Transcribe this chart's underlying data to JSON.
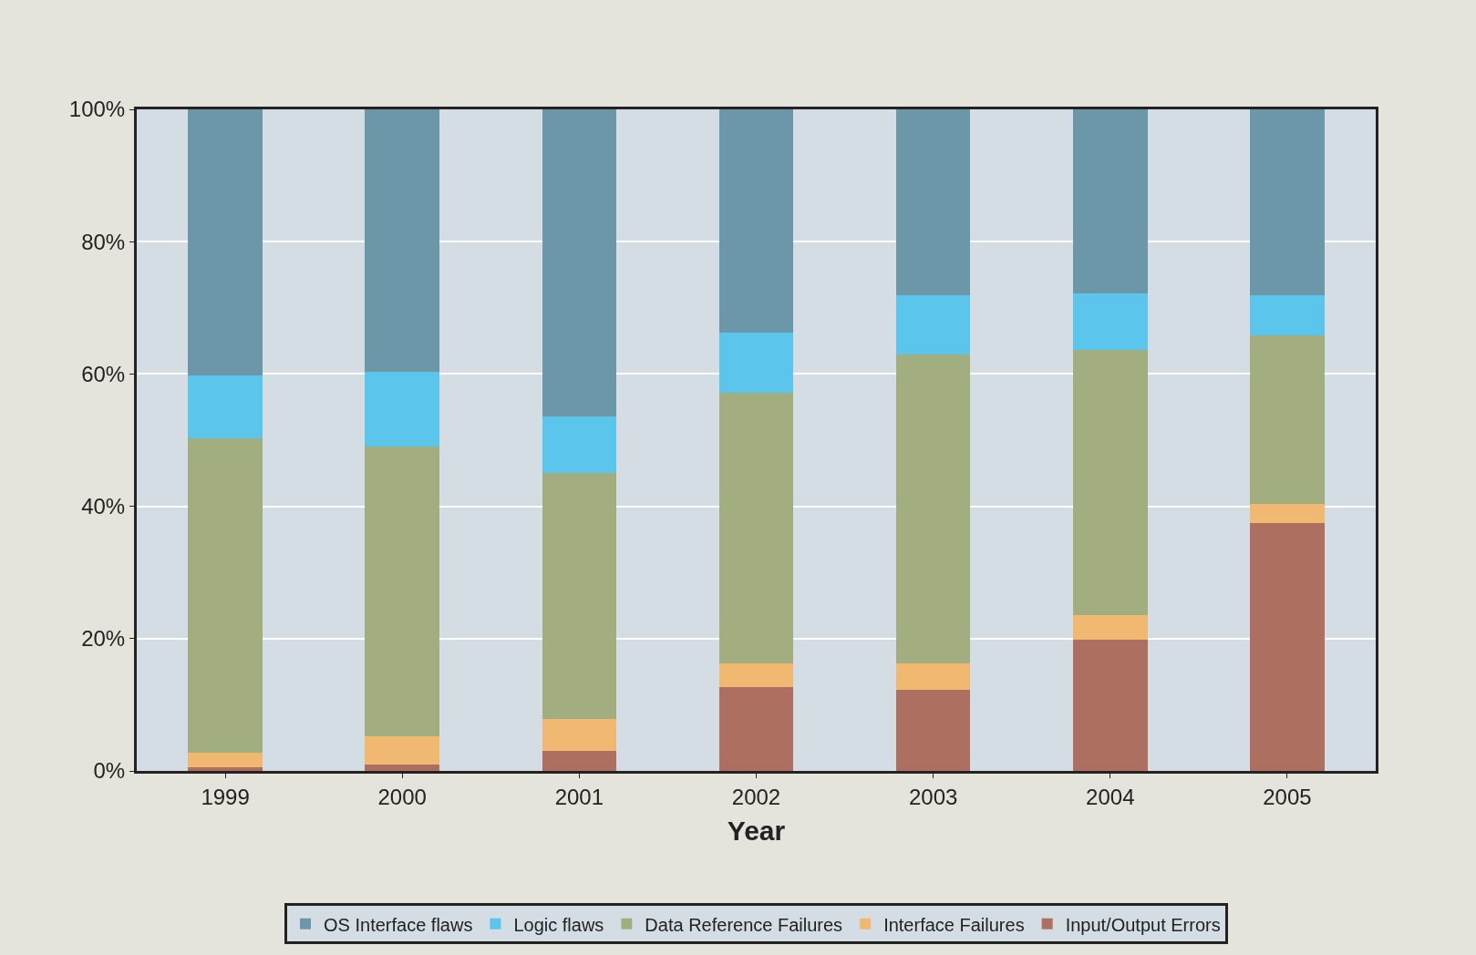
{
  "chart_data": {
    "type": "bar",
    "stacked": true,
    "xlabel": "Year",
    "categories": [
      "1999",
      "2000",
      "2001",
      "2002",
      "2003",
      "2004",
      "2005"
    ],
    "series": [
      {
        "name": "Input/Output Errors",
        "color": "#ad7060",
        "values": [
          0.5,
          1.0,
          3.0,
          12.7,
          12.3,
          19.9,
          37.4
        ]
      },
      {
        "name": "Interface Failures",
        "color": "#f0b870",
        "values": [
          2.3,
          4.3,
          4.8,
          3.6,
          4.0,
          3.6,
          2.9
        ]
      },
      {
        "name": "Data Reference Failures",
        "color": "#a3ae80",
        "values": [
          47.5,
          43.7,
          37.2,
          40.9,
          46.7,
          40.1,
          25.6
        ]
      },
      {
        "name": "Logic flaws",
        "color": "#5bc5ec",
        "values": [
          9.5,
          11.4,
          8.6,
          9.0,
          8.9,
          8.6,
          6.0
        ]
      },
      {
        "name": "OS Interface flaws",
        "color": "#6b97a8",
        "values": [
          40.2,
          39.6,
          46.4,
          33.8,
          28.1,
          27.8,
          28.1
        ]
      }
    ],
    "ylim": [
      0,
      100
    ],
    "yticks": [
      {
        "value": 0,
        "label": "0%"
      },
      {
        "value": 20,
        "label": "20%"
      },
      {
        "value": 40,
        "label": "40%"
      },
      {
        "value": 60,
        "label": "60%"
      },
      {
        "value": 80,
        "label": "80%"
      },
      {
        "value": 100,
        "label": "100%"
      }
    ],
    "grid": "y",
    "legend": "bottom"
  }
}
